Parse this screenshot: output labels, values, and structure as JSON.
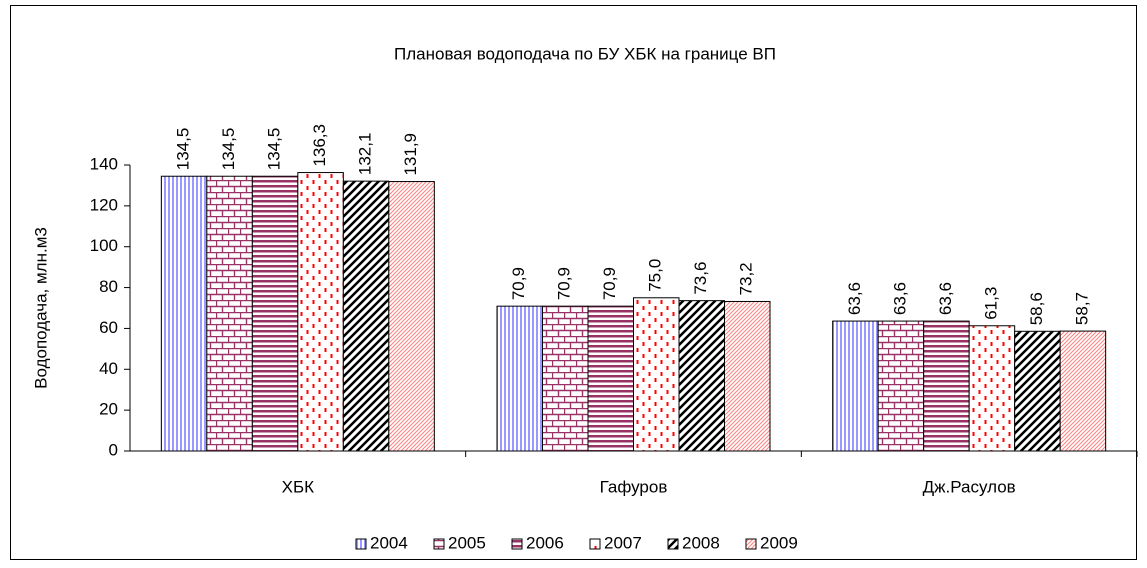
{
  "chart_data": {
    "type": "bar",
    "title": "Плановая водоподача по БУ ХБК на границе ВП",
    "y_label": "Водоподача, млн.м3",
    "categories": [
      "ХБК",
      "Гафуров",
      "Дж.Расулов"
    ],
    "series": [
      {
        "name": "2004",
        "color": "#9999ff",
        "pattern": "vertical",
        "values": [
          134.5,
          70.9,
          63.6
        ],
        "value_labels": [
          "134,5",
          "70,9",
          "63,6"
        ]
      },
      {
        "name": "2005",
        "color": "#993366",
        "pattern": "brick",
        "values": [
          134.5,
          70.9,
          63.6
        ],
        "value_labels": [
          "134,5",
          "70,9",
          "63,6"
        ]
      },
      {
        "name": "2006",
        "color": "#993366",
        "pattern": "horizontal",
        "values": [
          134.5,
          70.9,
          63.6
        ],
        "value_labels": [
          "134,5",
          "70,9",
          "63,6"
        ]
      },
      {
        "name": "2007",
        "color": "#ff0000",
        "pattern": "dashed-vertical",
        "values": [
          136.3,
          75.0,
          61.3
        ],
        "value_labels": [
          "136,3",
          "75,0",
          "61,3"
        ]
      },
      {
        "name": "2008",
        "color": "#000000",
        "pattern": "wide-diagonal",
        "values": [
          132.1,
          73.6,
          58.6
        ],
        "value_labels": [
          "132,1",
          "73,6",
          "58,6"
        ]
      },
      {
        "name": "2009",
        "color": "#ff8080",
        "pattern": "diagonal",
        "values": [
          131.9,
          73.2,
          58.7
        ],
        "value_labels": [
          "131,9",
          "73,2",
          "58,7"
        ]
      }
    ],
    "ylim": [
      0,
      140
    ],
    "yticks": [
      0,
      20,
      40,
      60,
      80,
      100,
      120,
      140
    ],
    "legend": "bottom"
  }
}
